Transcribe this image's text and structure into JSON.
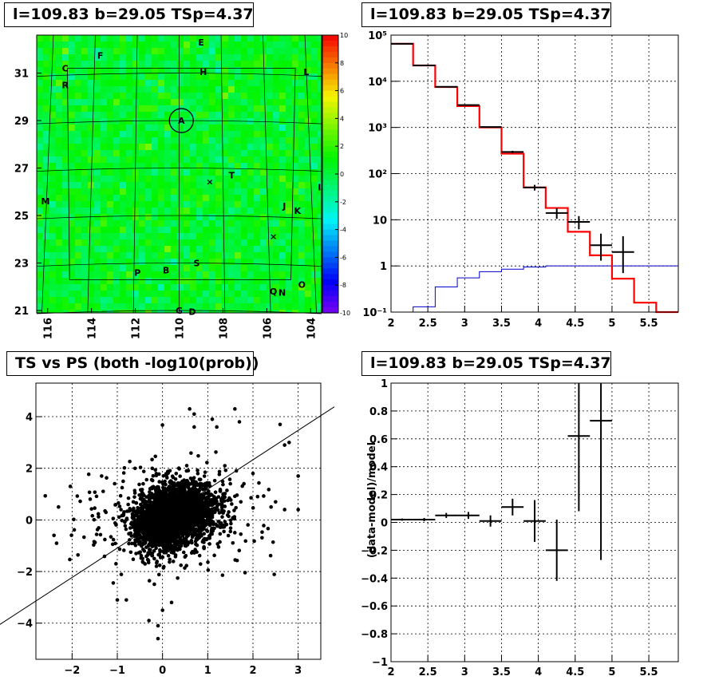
{
  "panels": {
    "map_title": "l=109.83 b=29.05 TSp=4.37",
    "spectrum_title": "l=109.83 b=29.05 TSp=4.37",
    "scatter_title": "TS vs PS (both -log10(prob))",
    "residual_title": "l=109.83 b=29.05 TSp=4.37",
    "residual_ylabel": "(data-model)/model"
  },
  "colors": {
    "data": "#000000",
    "model": "#ff0000",
    "background": "#0000cc"
  },
  "chart_data": [
    {
      "type": "heatmap",
      "xticks": [
        "116",
        "114",
        "112",
        "110",
        "108",
        "106",
        "104"
      ],
      "yticks": [
        "31",
        "29",
        "27",
        "25",
        "23",
        "21"
      ],
      "xlim": [
        116.5,
        103.5
      ],
      "ylim": [
        20.9,
        32.6
      ],
      "zlim": [
        -10,
        10
      ],
      "colorbar_ticks": [
        "10",
        "8",
        "6",
        "4",
        "2",
        "0",
        "-2",
        "-4",
        "-6",
        "-8",
        "-10"
      ],
      "sources": [
        {
          "label": "E",
          "l": 109.0,
          "b": 32.3
        },
        {
          "label": "F",
          "l": 113.6,
          "b": 31.75
        },
        {
          "label": "C",
          "l": 115.2,
          "b": 31.2
        },
        {
          "label": "H",
          "l": 108.9,
          "b": 31.05
        },
        {
          "label": "L",
          "l": 104.2,
          "b": 31.05
        },
        {
          "label": "R",
          "l": 115.2,
          "b": 30.5
        },
        {
          "label": "A",
          "l": 109.9,
          "b": 29.0
        },
        {
          "label": "T",
          "l": 107.6,
          "b": 26.7
        },
        {
          "label": "I",
          "l": 103.6,
          "b": 26.2
        },
        {
          "label": "M",
          "l": 116.1,
          "b": 25.6
        },
        {
          "label": "J",
          "l": 105.2,
          "b": 25.4
        },
        {
          "label": "K",
          "l": 104.6,
          "b": 25.2
        },
        {
          "label": "S",
          "l": 109.2,
          "b": 23.0
        },
        {
          "label": "B",
          "l": 110.6,
          "b": 22.7
        },
        {
          "label": "P",
          "l": 111.9,
          "b": 22.6
        },
        {
          "label": "O",
          "l": 104.4,
          "b": 22.1
        },
        {
          "label": "Q",
          "l": 105.7,
          "b": 21.8
        },
        {
          "label": "N",
          "l": 105.3,
          "b": 21.75
        },
        {
          "label": "G",
          "l": 110.0,
          "b": 21.0
        },
        {
          "label": "D",
          "l": 109.4,
          "b": 20.95
        }
      ]
    },
    {
      "type": "line",
      "xlabel": "",
      "ylabel": "",
      "xlim": [
        2,
        5.9
      ],
      "ylim": [
        0.1,
        100000
      ],
      "yscale": "log",
      "xticks": [
        "2",
        "2.5",
        "3",
        "3.5",
        "4",
        "4.5",
        "5",
        "5.5"
      ],
      "yticks": [
        "10^5",
        "10^4",
        "10^3",
        "10^2",
        "10",
        "1",
        "10^-1"
      ],
      "bin_edges": [
        2.0,
        2.3,
        2.6,
        2.9,
        3.2,
        3.5,
        3.8,
        4.1,
        4.4,
        4.7,
        5.0,
        5.3,
        5.6,
        5.9
      ],
      "series": [
        {
          "values": [
            65000,
            22000,
            7500,
            2900,
            1000,
            270,
            50,
            18,
            5.5,
            1.7,
            0.53,
            0.16,
            0.1
          ]
        },
        {
          "values": [
            0.1,
            0.13,
            0.35,
            0.55,
            0.75,
            0.85,
            0.95,
            1.0,
            1.0,
            1.0,
            1.0,
            1.0,
            1.0
          ]
        }
      ],
      "data_points": [
        {
          "x": 2.15,
          "y": 65000,
          "xerr": 0.15,
          "ylo": 64500,
          "yhi": 65500
        },
        {
          "x": 2.45,
          "y": 22000,
          "xerr": 0.15,
          "ylo": 21700,
          "yhi": 22300
        },
        {
          "x": 2.75,
          "y": 7600,
          "xerr": 0.15,
          "ylo": 7400,
          "yhi": 7800
        },
        {
          "x": 3.05,
          "y": 3050,
          "xerr": 0.15,
          "ylo": 2950,
          "yhi": 3150
        },
        {
          "x": 3.35,
          "y": 1020,
          "xerr": 0.15,
          "ylo": 990,
          "yhi": 1050
        },
        {
          "x": 3.65,
          "y": 295,
          "xerr": 0.15,
          "ylo": 278,
          "yhi": 312
        },
        {
          "x": 3.95,
          "y": 50,
          "xerr": 0.15,
          "ylo": 43,
          "yhi": 57
        },
        {
          "x": 4.25,
          "y": 14,
          "xerr": 0.15,
          "ylo": 10.5,
          "yhi": 18
        },
        {
          "x": 4.55,
          "y": 9,
          "xerr": 0.15,
          "ylo": 6.2,
          "yhi": 12
        },
        {
          "x": 4.85,
          "y": 2.8,
          "xerr": 0.15,
          "ylo": 1.3,
          "yhi": 5
        },
        {
          "x": 5.15,
          "y": 2,
          "xerr": 0.15,
          "ylo": 0.7,
          "yhi": 4.4
        }
      ]
    },
    {
      "type": "scatter",
      "xlabel": "",
      "ylabel": "",
      "xlim": [
        -2.8,
        3.5
      ],
      "ylim": [
        -5.4,
        5.3
      ],
      "xticks": [
        "-2",
        "-1",
        "0",
        "1",
        "2",
        "3"
      ],
      "yticks": [
        "4",
        "2",
        "0",
        "-2",
        "-4"
      ],
      "fit_line": {
        "slope": 1.14,
        "intercept": 0.05
      },
      "outliers": [
        [
          -2.3,
          0.5
        ],
        [
          -2.4,
          -0.6
        ],
        [
          -1.0,
          -3.1
        ],
        [
          -0.8,
          -3.1
        ],
        [
          -0.3,
          -3.9
        ],
        [
          -0.1,
          -4.6
        ],
        [
          -0.1,
          -4.1
        ],
        [
          0.0,
          -3.5
        ],
        [
          0.2,
          -3.2
        ],
        [
          0.6,
          4.3
        ],
        [
          0.7,
          4.1
        ],
        [
          0.7,
          3.6
        ],
        [
          1.1,
          3.9
        ],
        [
          1.2,
          3.6
        ],
        [
          1.6,
          4.3
        ],
        [
          1.7,
          3.8
        ],
        [
          2.6,
          3.7
        ],
        [
          2.7,
          2.9
        ],
        [
          2.8,
          3.0
        ],
        [
          3.0,
          1.7
        ],
        [
          3.0,
          0.4
        ],
        [
          2.7,
          0.4
        ],
        [
          2.5,
          0.7
        ],
        [
          2.4,
          0.5
        ],
        [
          1.5,
          1.4
        ],
        [
          2.0,
          1.8
        ],
        [
          1.8,
          1.4
        ]
      ]
    },
    {
      "type": "line",
      "xlabel": "",
      "ylabel": "(data-model)/model",
      "xlim": [
        2,
        5.9
      ],
      "ylim": [
        -1,
        1
      ],
      "xticks": [
        "2",
        "2.5",
        "3",
        "3.5",
        "4",
        "4.5",
        "5",
        "5.5"
      ],
      "yticks": [
        "1",
        "0.8",
        "0.6",
        "0.4",
        "0.2",
        "0",
        "-0.2",
        "-0.4",
        "-0.6",
        "-0.8",
        "-1"
      ],
      "data_points": [
        {
          "x": 2.15,
          "y": 0.02,
          "xerr": 0.15,
          "yerr": 0.008
        },
        {
          "x": 2.45,
          "y": 0.02,
          "xerr": 0.15,
          "yerr": 0.012
        },
        {
          "x": 2.75,
          "y": 0.05,
          "xerr": 0.15,
          "yerr": 0.018
        },
        {
          "x": 3.05,
          "y": 0.05,
          "xerr": 0.15,
          "yerr": 0.025
        },
        {
          "x": 3.35,
          "y": 0.01,
          "xerr": 0.15,
          "yerr": 0.04
        },
        {
          "x": 3.65,
          "y": 0.11,
          "xerr": 0.15,
          "yerr": 0.06
        },
        {
          "x": 3.95,
          "y": 0.01,
          "xerr": 0.15,
          "yerr": 0.15
        },
        {
          "x": 4.25,
          "y": -0.2,
          "xerr": 0.15,
          "yerr": 0.22
        },
        {
          "x": 4.55,
          "y": 0.62,
          "xerr": 0.15,
          "yerr": 0.54
        },
        {
          "x": 4.85,
          "y": 0.73,
          "xerr": 0.15,
          "yerr": 1.0
        }
      ]
    }
  ]
}
